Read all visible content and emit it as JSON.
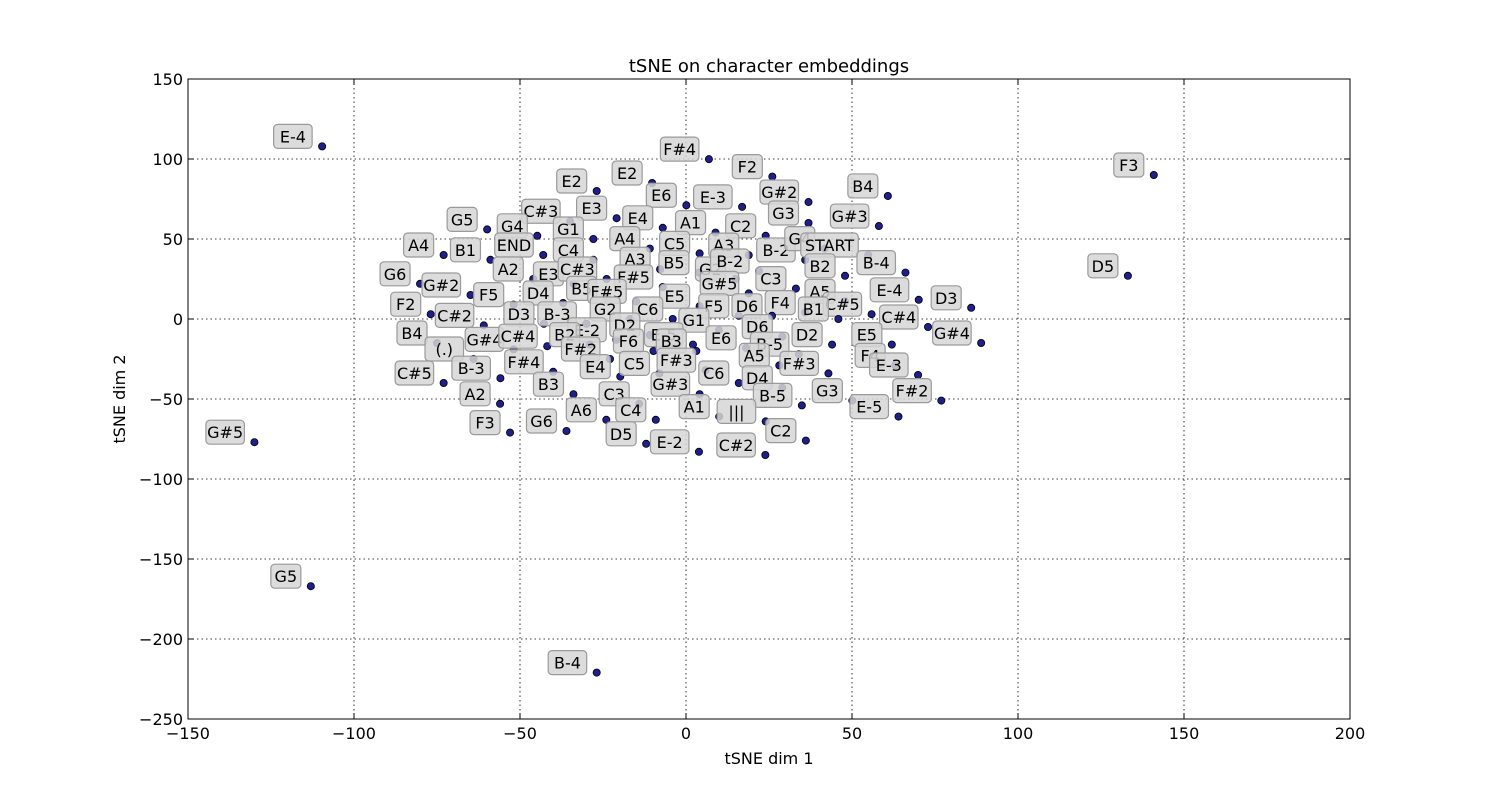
{
  "chart_data": {
    "type": "scatter",
    "title": "tSNE on character embeddings",
    "xlabel": "tSNE dim 1",
    "ylabel": "tSNE dim 2",
    "xlim": [
      -150,
      200
    ],
    "ylim": [
      -250,
      150
    ],
    "xticks": [
      -150,
      -100,
      -50,
      0,
      50,
      100,
      150,
      200
    ],
    "yticks": [
      -250,
      -200,
      -150,
      -100,
      -50,
      0,
      50,
      100,
      150
    ],
    "xtick_labels": [
      "−150",
      "−100",
      "−50",
      "0",
      "50",
      "100",
      "150",
      "200"
    ],
    "ytick_labels": [
      "−250",
      "−200",
      "−150",
      "−100",
      "−50",
      "0",
      "50",
      "100",
      "150"
    ],
    "grid": true,
    "colors": {
      "point": "#1e1e8c",
      "label_box": "#d6d6d6"
    },
    "points": [
      {
        "label": "E-4",
        "x": -109.6,
        "y": 107.9
      },
      {
        "label": "F#4",
        "x": 6.9,
        "y": 99.9
      },
      {
        "label": "F3",
        "x": 140.9,
        "y": 90.0
      },
      {
        "label": "E2",
        "x": -10.2,
        "y": 85.0
      },
      {
        "label": "F2",
        "x": 26.0,
        "y": 89.0
      },
      {
        "label": "E2",
        "x": -26.9,
        "y": 80.0
      },
      {
        "label": "E6",
        "x": 0.1,
        "y": 71.1
      },
      {
        "label": "E-3",
        "x": 16.9,
        "y": 70.1
      },
      {
        "label": "G#2",
        "x": 36.9,
        "y": 73.1
      },
      {
        "label": "B4",
        "x": 60.8,
        "y": 76.9
      },
      {
        "label": "G5",
        "x": -59.9,
        "y": 56.0
      },
      {
        "label": "C#3",
        "x": -34.9,
        "y": 61.1
      },
      {
        "label": "E3",
        "x": -20.9,
        "y": 63.0
      },
      {
        "label": "G4",
        "x": -44.8,
        "y": 52.0
      },
      {
        "label": "G3",
        "x": 36.9,
        "y": 60.0
      },
      {
        "label": "G#3",
        "x": 58.1,
        "y": 58.1
      },
      {
        "label": "E4",
        "x": -7.0,
        "y": 57.0
      },
      {
        "label": "A1",
        "x": 8.9,
        "y": 54.0
      },
      {
        "label": "C2",
        "x": 24.0,
        "y": 52.0
      },
      {
        "label": "G1",
        "x": -27.9,
        "y": 50.0
      },
      {
        "label": "A4",
        "x": -73.0,
        "y": 40.0
      },
      {
        "label": "B1",
        "x": -58.9,
        "y": 37.0
      },
      {
        "label": "END",
        "x": -43.0,
        "y": 40.0
      },
      {
        "label": "C4",
        "x": -27.9,
        "y": 37.0
      },
      {
        "label": "A4",
        "x": -10.9,
        "y": 44.0
      },
      {
        "label": "C5",
        "x": 4.1,
        "y": 41.0
      },
      {
        "label": "A3",
        "x": 18.9,
        "y": 39.9
      },
      {
        "label": "B-2",
        "x": 35.9,
        "y": 36.9
      },
      {
        "label": "G4",
        "x": 41.8,
        "y": 44.0
      },
      {
        "label": "START",
        "x": 54.9,
        "y": 40.0
      },
      {
        "label": "A2",
        "x": -46.0,
        "y": 25.0
      },
      {
        "label": "E3",
        "x": -33.9,
        "y": 22.0
      },
      {
        "label": "C#3",
        "x": -23.9,
        "y": 25.0
      },
      {
        "label": "A3",
        "x": -7.8,
        "y": 31.1
      },
      {
        "label": "B5",
        "x": 3.9,
        "y": 29.0
      },
      {
        "label": "G2",
        "x": 14.9,
        "y": 25.0
      },
      {
        "label": "B-2",
        "x": 22.0,
        "y": 30.0
      },
      {
        "label": "B2",
        "x": 47.9,
        "y": 27.0
      },
      {
        "label": "B-4",
        "x": 66.1,
        "y": 29.0
      },
      {
        "label": "D5",
        "x": 133.1,
        "y": 27.0
      },
      {
        "label": "G6",
        "x": -80.1,
        "y": 22.0
      },
      {
        "label": "G#2",
        "x": -64.9,
        "y": 15.0
      },
      {
        "label": "F#5",
        "x": -7.0,
        "y": 20.0
      },
      {
        "label": "G#5",
        "x": 18.9,
        "y": 16.0
      },
      {
        "label": "C3",
        "x": 33.1,
        "y": 19.0
      },
      {
        "label": "D4",
        "x": -37.0,
        "y": 10.0
      },
      {
        "label": "B5",
        "x": -23.9,
        "y": 12.9
      },
      {
        "label": "F#5",
        "x": -15.0,
        "y": 11.0
      },
      {
        "label": "F5",
        "x": -51.9,
        "y": 9.0
      },
      {
        "label": "E5",
        "x": 4.1,
        "y": 8.0
      },
      {
        "label": "F4",
        "x": 35.9,
        "y": 4.0
      },
      {
        "label": "A5",
        "x": 47.9,
        "y": 11.0
      },
      {
        "label": "C#5",
        "x": 55.9,
        "y": 3.0
      },
      {
        "label": "E-4",
        "x": 70.1,
        "y": 12.0
      },
      {
        "label": "D3",
        "x": 85.9,
        "y": 7.0
      },
      {
        "label": "F2",
        "x": -76.9,
        "y": 3.0
      },
      {
        "label": "C#2",
        "x": -60.9,
        "y": -4.0
      },
      {
        "label": "D3",
        "x": -42.8,
        "y": -3.0
      },
      {
        "label": "B-3",
        "x": -30.0,
        "y": -3.0
      },
      {
        "label": "G2",
        "x": -16.8,
        "y": 0.0
      },
      {
        "label": "C6",
        "x": -4.0,
        "y": 0.0
      },
      {
        "label": "F5",
        "x": 15.9,
        "y": 2.0
      },
      {
        "label": "D6",
        "x": 25.9,
        "y": 2.0
      },
      {
        "label": "B1",
        "x": 45.9,
        "y": 0.0
      },
      {
        "label": "C#4",
        "x": 72.9,
        "y": -5.0
      },
      {
        "label": "G#4",
        "x": 88.9,
        "y": -15.0
      },
      {
        "label": "B4",
        "x": -75.0,
        "y": -15.0
      },
      {
        "label": "E-2",
        "x": -21.0,
        "y": -13.0
      },
      {
        "label": "D2",
        "x": -10.9,
        "y": -10.0
      },
      {
        "label": "G1",
        "x": 9.9,
        "y": -7.0
      },
      {
        "label": "E-5",
        "x": 2.1,
        "y": -16.0
      },
      {
        "label": "D6",
        "x": 29.0,
        "y": -11.0
      },
      {
        "label": "D2",
        "x": 44.0,
        "y": -16.0
      },
      {
        "label": "E5",
        "x": 62.0,
        "y": -16.0
      },
      {
        "label": "(.)",
        "x": -64.0,
        "y": -25.0
      },
      {
        "label": "G#4",
        "x": -51.9,
        "y": -19.0
      },
      {
        "label": "C#4",
        "x": -41.8,
        "y": -17.0
      },
      {
        "label": "B2",
        "x": -29.0,
        "y": -16.0
      },
      {
        "label": "F6",
        "x": -9.8,
        "y": -20.0
      },
      {
        "label": "E6",
        "x": 18.1,
        "y": -18.0
      },
      {
        "label": "B-5",
        "x": 34.0,
        "y": -22.0
      },
      {
        "label": "F#2",
        "x": -22.9,
        "y": -25.0
      },
      {
        "label": "B3",
        "x": 3.1,
        "y": -20.0
      },
      {
        "label": "A5",
        "x": 28.1,
        "y": -29.0
      },
      {
        "label": "F4",
        "x": 63.0,
        "y": -29.0
      },
      {
        "label": "C#5",
        "x": -73.0,
        "y": -40.0
      },
      {
        "label": "B-3",
        "x": -55.9,
        "y": -37.0
      },
      {
        "label": "F#4",
        "x": -40.0,
        "y": -33.0
      },
      {
        "label": "E4",
        "x": -19.8,
        "y": -36.0
      },
      {
        "label": "C5",
        "x": -8.0,
        "y": -34.0
      },
      {
        "label": "F#3",
        "x": 5.9,
        "y": -32.0
      },
      {
        "label": "F#3",
        "x": 42.9,
        "y": -34.0
      },
      {
        "label": "E-3",
        "x": 69.9,
        "y": -35.0
      },
      {
        "label": "C6",
        "x": 15.9,
        "y": -40.0
      },
      {
        "label": "D4",
        "x": 29.0,
        "y": -43.0
      },
      {
        "label": "B3",
        "x": -33.9,
        "y": -47.0
      },
      {
        "label": "G#3",
        "x": 4.1,
        "y": -47.0
      },
      {
        "label": "C3",
        "x": -14.1,
        "y": -53.0
      },
      {
        "label": "G3",
        "x": 50.1,
        "y": -51.0
      },
      {
        "label": "F#2",
        "x": 76.9,
        "y": -51.0
      },
      {
        "label": "A2",
        "x": -56.0,
        "y": -53.0
      },
      {
        "label": "B-5",
        "x": 34.9,
        "y": -54.0
      },
      {
        "label": "A6",
        "x": -24.0,
        "y": -63.0
      },
      {
        "label": "C4",
        "x": -9.1,
        "y": -63.0
      },
      {
        "label": "A1",
        "x": 10.0,
        "y": -61.0
      },
      {
        "label": "|||",
        "x": 24.0,
        "y": -64.0
      },
      {
        "label": "E-5",
        "x": 64.0,
        "y": -61.0
      },
      {
        "label": "F3",
        "x": -53.0,
        "y": -71.0
      },
      {
        "label": "G6",
        "x": -36.0,
        "y": -70.0
      },
      {
        "label": "D5",
        "x": -12.0,
        "y": -78.0
      },
      {
        "label": "C2",
        "x": 36.1,
        "y": -76.0
      },
      {
        "label": "G#5",
        "x": -130.0,
        "y": -77.0
      },
      {
        "label": "E-2",
        "x": 3.9,
        "y": -83.0
      },
      {
        "label": "C#2",
        "x": 23.9,
        "y": -85.0
      },
      {
        "label": "G5",
        "x": -113.0,
        "y": -167.0
      },
      {
        "label": "B-4",
        "x": -26.9,
        "y": -221.0
      }
    ]
  }
}
